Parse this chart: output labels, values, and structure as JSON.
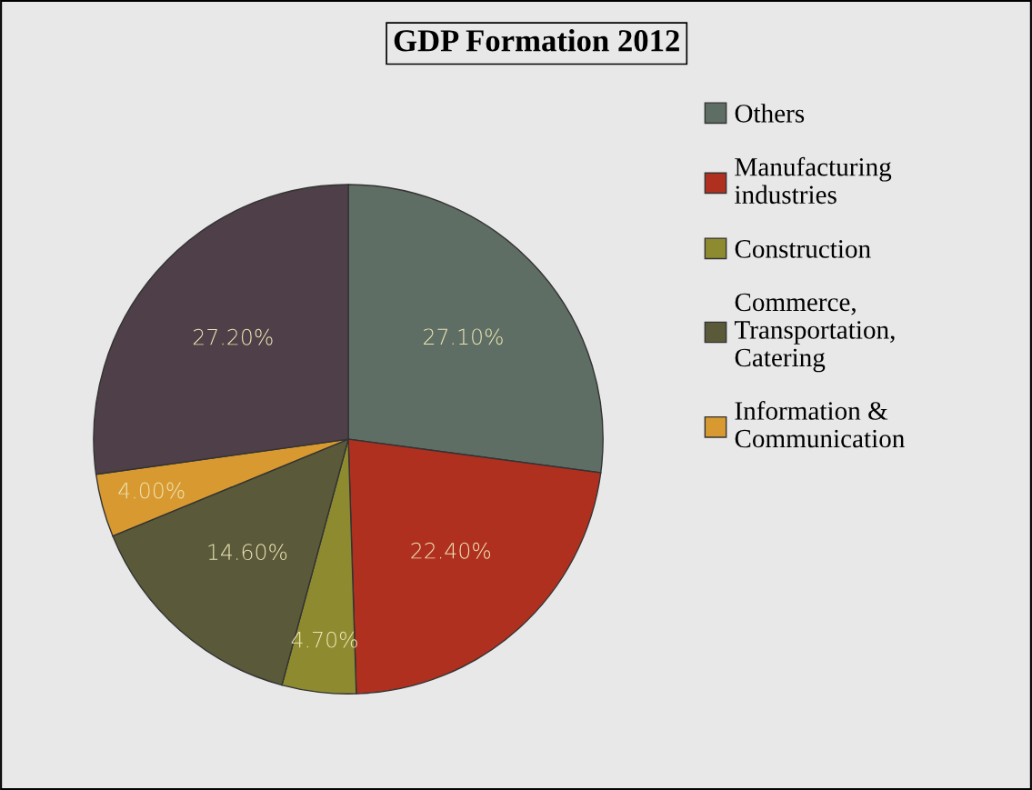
{
  "chart_data": {
    "type": "pie",
    "title": "GDP Formation 2012",
    "categories": [
      "Others",
      "Manufacturing\nindustries",
      "Construction",
      "Commerce,\nTransportation,\nCatering",
      "Information &\nCommunication",
      null
    ],
    "values": [
      27.1,
      22.4,
      4.7,
      14.6,
      4.0,
      27.2
    ],
    "colors": [
      "#5f6e64",
      "#b03020",
      "#8e8a30",
      "#5a5a3a",
      "#d89a30",
      "#4e3f48"
    ],
    "value_labels": [
      "27.10%",
      "22.40%",
      "4.70%",
      "14.60%",
      "4.00%",
      "27.20%"
    ],
    "legend": "right"
  }
}
